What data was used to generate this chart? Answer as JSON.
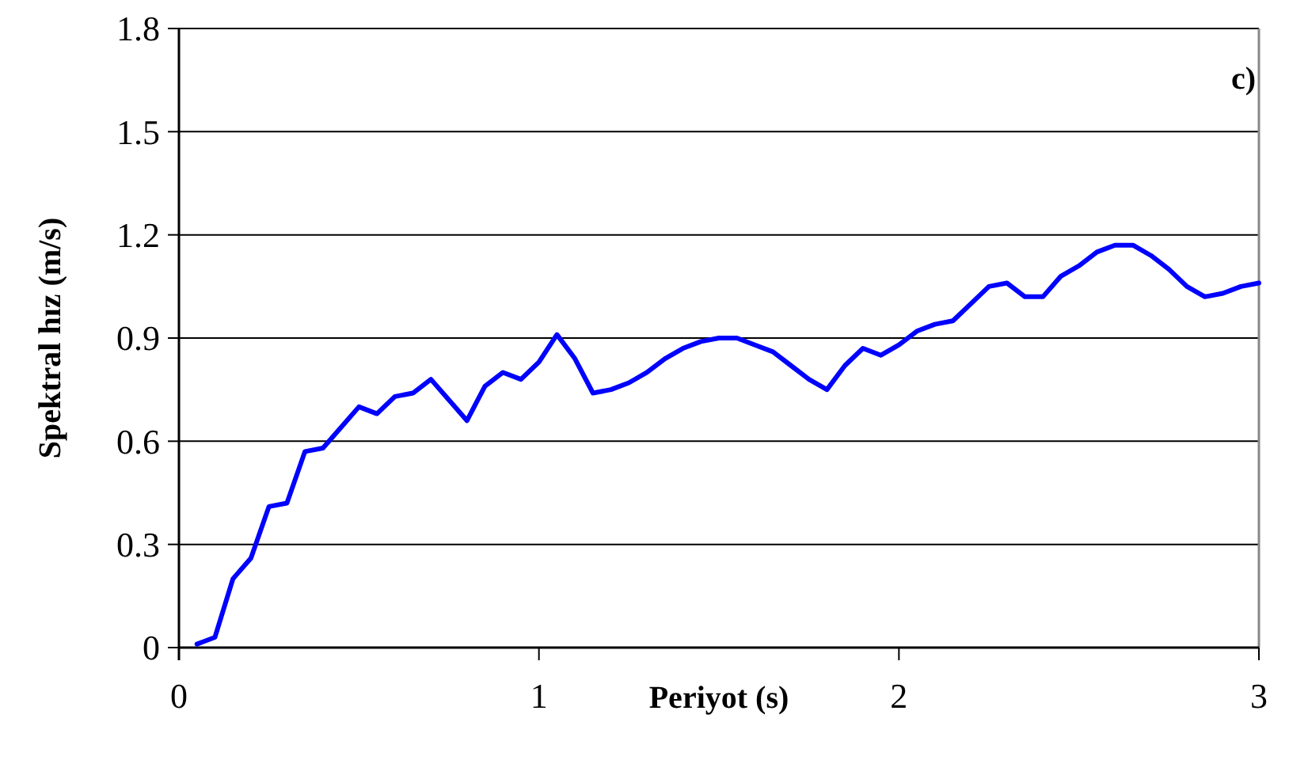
{
  "chart_data": {
    "type": "line",
    "xlabel": "Periyot (s)",
    "ylabel": "Spektral hız (m/s)",
    "annotations": [
      "c)"
    ],
    "x": [
      0.05,
      0.1,
      0.15,
      0.2,
      0.25,
      0.3,
      0.35,
      0.4,
      0.45,
      0.5,
      0.55,
      0.6,
      0.65,
      0.7,
      0.75,
      0.8,
      0.85,
      0.9,
      0.95,
      1.0,
      1.05,
      1.1,
      1.15,
      1.2,
      1.25,
      1.3,
      1.35,
      1.4,
      1.45,
      1.5,
      1.55,
      1.6,
      1.65,
      1.7,
      1.75,
      1.8,
      1.85,
      1.9,
      1.95,
      2.0,
      2.05,
      2.1,
      2.15,
      2.2,
      2.25,
      2.3,
      2.35,
      2.4,
      2.45,
      2.5,
      2.55,
      2.6,
      2.65,
      2.7,
      2.75,
      2.8,
      2.85,
      2.9,
      2.95,
      3.0
    ],
    "series": [
      {
        "color": "#0000ff",
        "values": [
          0.01,
          0.03,
          0.2,
          0.26,
          0.41,
          0.42,
          0.57,
          0.58,
          0.64,
          0.7,
          0.68,
          0.73,
          0.74,
          0.78,
          0.72,
          0.66,
          0.76,
          0.8,
          0.78,
          0.83,
          0.91,
          0.84,
          0.74,
          0.75,
          0.77,
          0.8,
          0.84,
          0.87,
          0.89,
          0.9,
          0.9,
          0.88,
          0.86,
          0.82,
          0.78,
          0.75,
          0.82,
          0.87,
          0.85,
          0.88,
          0.92,
          0.94,
          0.95,
          1.0,
          1.05,
          1.06,
          1.02,
          1.02,
          1.08,
          1.11,
          1.15,
          1.17,
          1.17,
          1.14,
          1.1,
          1.05,
          1.02,
          1.03,
          1.05,
          1.06
        ]
      }
    ],
    "xlim": [
      0,
      3
    ],
    "xticks": [
      0,
      1,
      2,
      3
    ],
    "ylim": [
      0,
      1.8
    ],
    "yticks": [
      0,
      0.3,
      0.6,
      0.9,
      1.2,
      1.5,
      1.8
    ],
    "grid": "y",
    "marker": "none",
    "line_style": "solid"
  }
}
